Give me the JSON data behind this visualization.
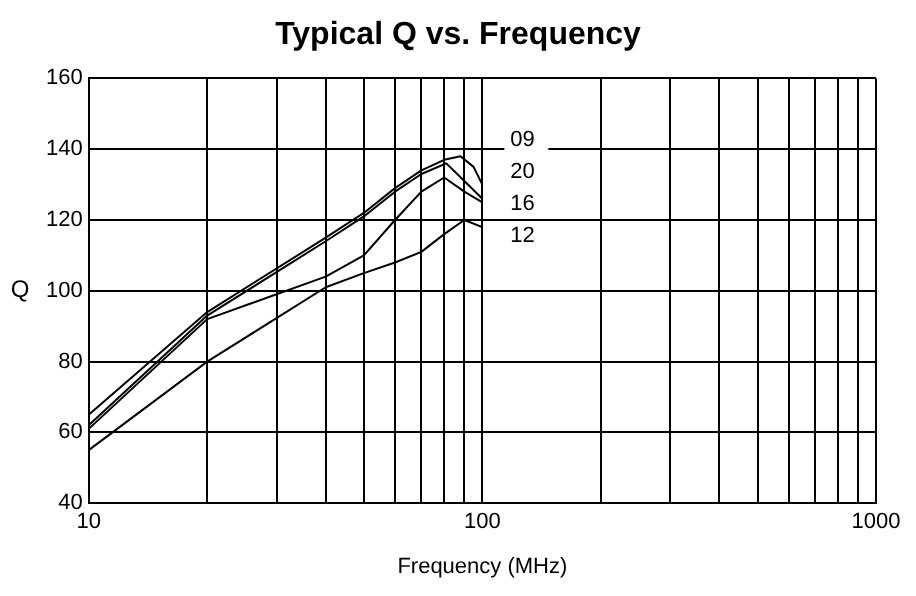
{
  "chart_data": {
    "type": "line",
    "title": "Typical Q vs. Frequency",
    "xlabel": "Frequency (MHz)",
    "ylabel": "Q",
    "log": "x",
    "grid": true,
    "legend": false,
    "marker": "none",
    "line_style": "solid",
    "xlim": [
      10,
      1000
    ],
    "ylim": [
      40,
      160
    ],
    "xticks": [
      10,
      {
        "value": 20,
        "label": null
      },
      {
        "value": 30,
        "label": null
      },
      {
        "value": 40,
        "label": null
      },
      {
        "value": 50,
        "label": null
      },
      {
        "value": 60,
        "label": null
      },
      {
        "value": 70,
        "label": null
      },
      {
        "value": 80,
        "label": null
      },
      {
        "value": 90,
        "label": null
      },
      100,
      {
        "value": 200,
        "label": null
      },
      {
        "value": 300,
        "label": null
      },
      {
        "value": 400,
        "label": null
      },
      {
        "value": 500,
        "label": null
      },
      {
        "value": 600,
        "label": null
      },
      {
        "value": 700,
        "label": null
      },
      {
        "value": 800,
        "label": null
      },
      {
        "value": 900,
        "label": null
      },
      1000
    ],
    "yticks": [
      40,
      60,
      80,
      100,
      120,
      140,
      160
    ],
    "series": [
      {
        "name": "09",
        "color": "#000000",
        "x": [
          10,
          20,
          40,
          50,
          60,
          70,
          80,
          88,
          95,
          100
        ],
        "values": [
          65,
          94,
          115,
          122,
          129,
          134,
          137,
          138,
          135,
          130
        ]
      },
      {
        "name": "20",
        "color": "#000000",
        "x": [
          10,
          20,
          40,
          50,
          60,
          70,
          81,
          90,
          100
        ],
        "values": [
          62,
          93,
          114,
          121,
          128,
          133,
          136,
          131,
          126
        ]
      },
      {
        "name": "16",
        "color": "#000000",
        "x": [
          10,
          20,
          40,
          50,
          60,
          70,
          80,
          90,
          100
        ],
        "values": [
          61,
          92,
          104,
          110,
          120,
          128,
          132,
          128,
          125
        ]
      },
      {
        "name": "12",
        "color": "#000000",
        "x": [
          10,
          20,
          40,
          50,
          60,
          70,
          80,
          90,
          100
        ],
        "values": [
          55,
          80,
          101,
          105,
          108,
          111,
          116,
          120,
          118
        ]
      }
    ]
  }
}
